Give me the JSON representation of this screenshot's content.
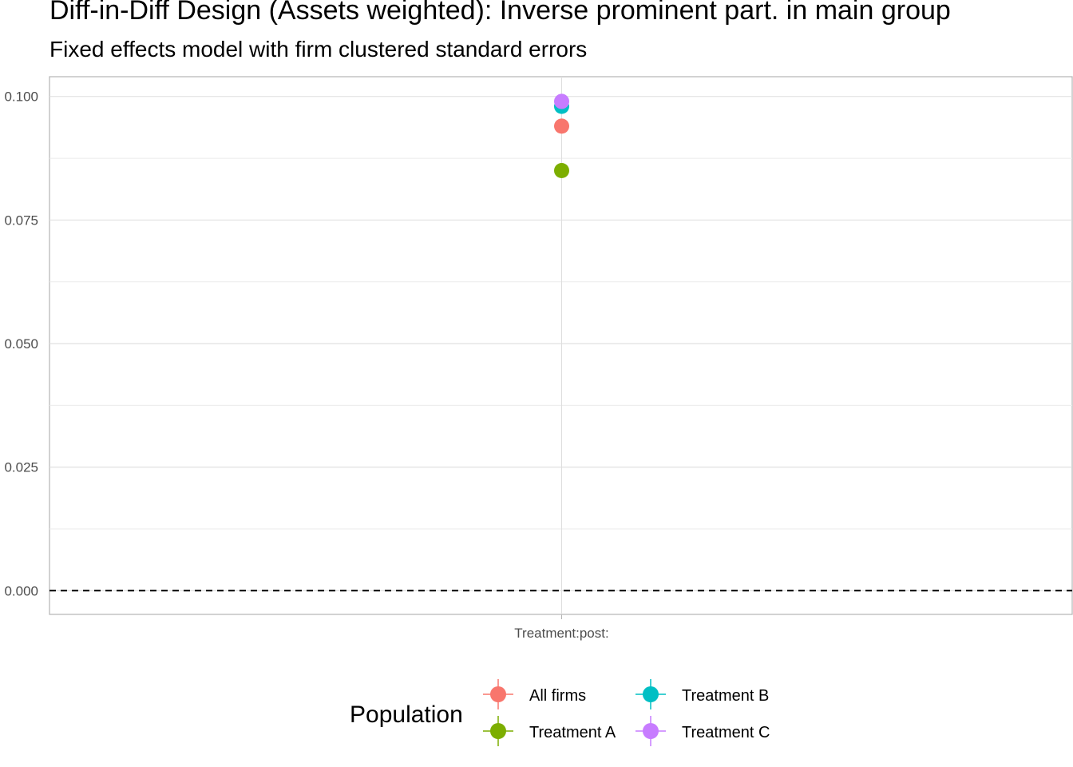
{
  "chart_data": {
    "type": "scatter",
    "title": "Diff-in-Diff Design (Assets weighted): Inverse prominent part. in main group",
    "subtitle": "Fixed effects model with firm clustered standard errors",
    "categories": [
      "Treatment:post:"
    ],
    "y_ticks": [
      "0.000",
      "0.025",
      "0.050",
      "0.075",
      "0.100"
    ],
    "ylim": [
      -0.0048,
      0.104
    ],
    "reference_line": {
      "y": 0,
      "style": "dashed"
    },
    "grid": true,
    "legend": {
      "title": "Population",
      "position": "bottom"
    },
    "series": [
      {
        "name": "All firms",
        "color": "#F8766D",
        "values": [
          0.094
        ]
      },
      {
        "name": "Treatment A",
        "color": "#7CAE00",
        "values": [
          0.085
        ]
      },
      {
        "name": "Treatment B",
        "color": "#00BFC4",
        "values": [
          0.098
        ]
      },
      {
        "name": "Treatment C",
        "color": "#C77CFF",
        "values": [
          0.099
        ]
      }
    ]
  }
}
